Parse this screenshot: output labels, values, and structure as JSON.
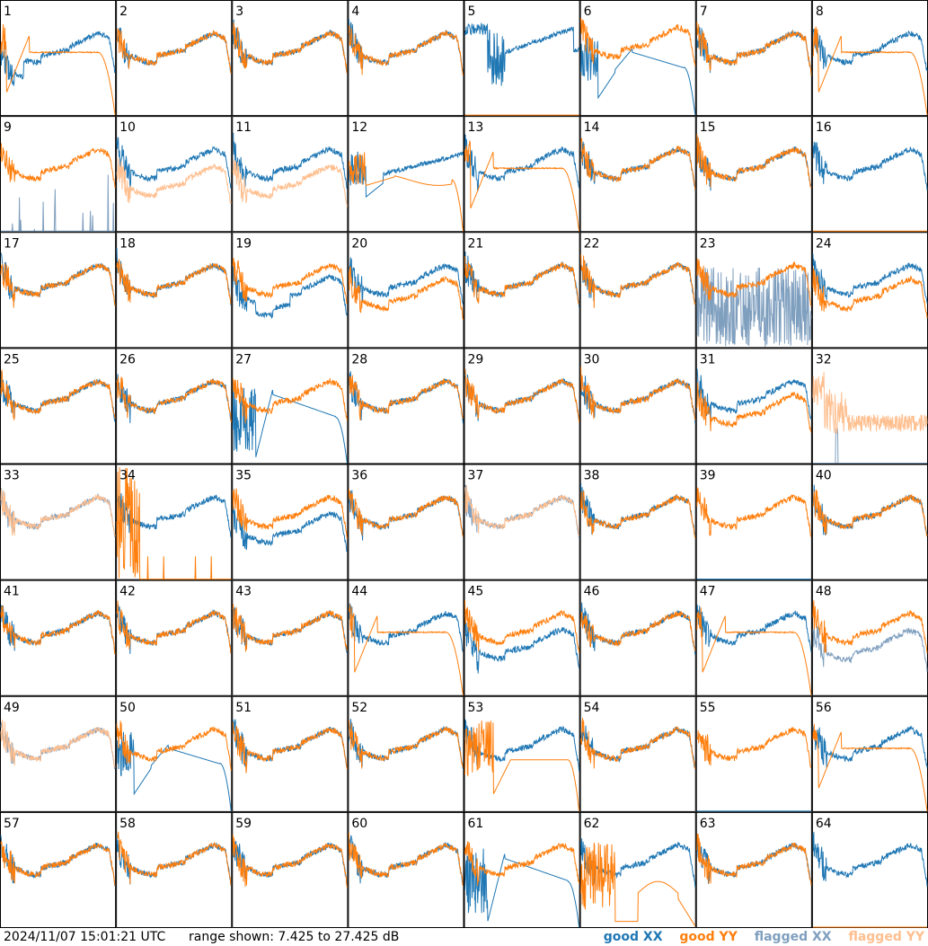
{
  "footer": {
    "timestamp": "2024/11/07 15:01:21 UTC",
    "range": "range shown: 7.425 to 27.425 dB"
  },
  "colors": {
    "good_xx": "#1f77b4",
    "good_yy": "#ff7f0e",
    "flagged_xx": "#7f9fbf",
    "flagged_yy": "#ffbf8f"
  },
  "chart_data": {
    "type": "line",
    "layout": "small-multiples-8x8",
    "title": "",
    "xlabel": "",
    "ylabel": "",
    "ylim": [
      7.425,
      27.425
    ],
    "unit": "dB",
    "legend": [
      {
        "label": "good XX",
        "color": "#1f77b4"
      },
      {
        "label": "good YY",
        "color": "#ff7f0e"
      },
      {
        "label": "flagged XX",
        "color": "#7f9fbf"
      },
      {
        "label": "flagged YY",
        "color": "#ffbf8f"
      }
    ],
    "panel_labels": [
      "1",
      "2",
      "3",
      "4",
      "5",
      "6",
      "7",
      "8",
      "9",
      "10",
      "11",
      "12",
      "13",
      "14",
      "15",
      "16",
      "17",
      "18",
      "19",
      "20",
      "21",
      "22",
      "23",
      "24",
      "25",
      "26",
      "27",
      "28",
      "29",
      "30",
      "31",
      "32",
      "33",
      "34",
      "35",
      "36",
      "37",
      "38",
      "39",
      "40",
      "41",
      "42",
      "43",
      "44",
      "45",
      "46",
      "47",
      "48",
      "49",
      "50",
      "51",
      "52",
      "53",
      "54",
      "55",
      "56",
      "57",
      "58",
      "59",
      "60",
      "61",
      "62",
      "63",
      "64"
    ],
    "panels": [
      {
        "xx": "x1",
        "yy": "y1"
      },
      {
        "xx": "n",
        "yy": "n"
      },
      {
        "xx": "n",
        "yy": "n"
      },
      {
        "xx": "n",
        "yy": "n"
      },
      {
        "xx": "x5",
        "yy": "dead"
      },
      {
        "xx": "x6",
        "yy": "hi"
      },
      {
        "xx": "n",
        "yy": "n"
      },
      {
        "xx": "n",
        "yy": "y1"
      },
      {
        "xx": "fspikes",
        "yy": "n"
      },
      {
        "xx": "n",
        "yy": "flow"
      },
      {
        "xx": "n",
        "yy": "flow"
      },
      {
        "xx": "x12",
        "yy": "y12"
      },
      {
        "xx": "n",
        "yy": "y1"
      },
      {
        "xx": "n",
        "yy": "n"
      },
      {
        "xx": "n",
        "yy": "n"
      },
      {
        "xx": "n",
        "yy": "dead"
      },
      {
        "xx": "n",
        "yy": "n"
      },
      {
        "xx": "n",
        "yy": "n"
      },
      {
        "xx": "x19",
        "yy": "n"
      },
      {
        "xx": "n",
        "yy": "low"
      },
      {
        "xx": "n",
        "yy": "n"
      },
      {
        "xx": "n",
        "yy": "n"
      },
      {
        "xx": "fnoise",
        "yy": "n"
      },
      {
        "xx": "n",
        "yy": "low"
      },
      {
        "xx": "n",
        "yy": "n"
      },
      {
        "xx": "n",
        "yy": "n"
      },
      {
        "xx": "x27",
        "yy": "n"
      },
      {
        "xx": "n",
        "yy": "n"
      },
      {
        "xx": "n",
        "yy": "n"
      },
      {
        "xx": "n",
        "yy": "n"
      },
      {
        "xx": "n",
        "yy": "low"
      },
      {
        "xx": "fdead",
        "yy": "f32"
      },
      {
        "xx": "fn",
        "yy": "fn"
      },
      {
        "xx": "n",
        "yy": "spikes"
      },
      {
        "xx": "lowx",
        "yy": "n"
      },
      {
        "xx": "n",
        "yy": "n"
      },
      {
        "xx": "fn",
        "yy": "fn"
      },
      {
        "xx": "n",
        "yy": "n"
      },
      {
        "xx": "dead",
        "yy": "n"
      },
      {
        "xx": "n",
        "yy": "n"
      },
      {
        "xx": "n",
        "yy": "n"
      },
      {
        "xx": "n",
        "yy": "n"
      },
      {
        "xx": "n",
        "yy": "n"
      },
      {
        "xx": "n",
        "yy": "y1"
      },
      {
        "xx": "lowx",
        "yy": "n"
      },
      {
        "xx": "n",
        "yy": "n"
      },
      {
        "xx": "n",
        "yy": "y1"
      },
      {
        "xx": "flow",
        "yy": "n"
      },
      {
        "xx": "fn",
        "yy": "fn"
      },
      {
        "xx": "x6",
        "yy": "n"
      },
      {
        "xx": "n",
        "yy": "n"
      },
      {
        "xx": "n",
        "yy": "n"
      },
      {
        "xx": "n",
        "yy": "y53"
      },
      {
        "xx": "n",
        "yy": "n"
      },
      {
        "xx": "dead",
        "yy": "n"
      },
      {
        "xx": "n",
        "yy": "y1"
      },
      {
        "xx": "n",
        "yy": "n"
      },
      {
        "xx": "n",
        "yy": "n"
      },
      {
        "xx": "n",
        "yy": "n"
      },
      {
        "xx": "n",
        "yy": "n"
      },
      {
        "xx": "x27",
        "yy": "n"
      },
      {
        "xx": "n",
        "yy": "y62"
      },
      {
        "xx": "n",
        "yy": "n"
      },
      {
        "xx": "n",
        "yy": "dead"
      }
    ]
  }
}
